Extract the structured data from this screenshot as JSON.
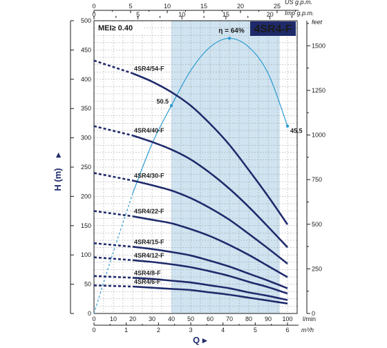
{
  "chart_data": {
    "type": "line",
    "title": "4SR4-F",
    "mei_label": "MEI≥ 0.40",
    "xlabel": "Q",
    "ylabel": "H (m)",
    "xlim": [
      0,
      105
    ],
    "ylim": [
      0,
      500
    ],
    "x_unit": "l/min",
    "x_ticks": [
      0,
      10,
      20,
      30,
      40,
      50,
      60,
      70,
      80,
      90,
      100
    ],
    "y_ticks": [
      0,
      50,
      100,
      150,
      200,
      250,
      300,
      350,
      400,
      450,
      500
    ],
    "grid": true,
    "shaded_range": [
      40,
      96
    ],
    "secondary_axes": {
      "us_gpm": {
        "label": "US g.p.m.",
        "ticks": [
          0,
          5,
          10,
          15,
          20,
          25
        ]
      },
      "imp_gpm": {
        "label": "Imp g.p.m.",
        "ticks": [
          0,
          5,
          10,
          15,
          20
        ]
      },
      "m3h": {
        "label": "m³/h",
        "ticks": [
          0,
          1,
          2,
          3,
          4,
          5,
          6
        ]
      },
      "feet": {
        "label": "feet",
        "ticks": [
          0,
          250,
          500,
          750,
          1000,
          1250,
          1500
        ]
      }
    },
    "series": [
      {
        "name": "4SR4/54-F",
        "x": [
          20,
          30,
          40,
          50,
          60,
          70,
          80,
          90,
          100
        ],
        "y": [
          410,
          396,
          378,
          355,
          324,
          288,
          245,
          200,
          152
        ]
      },
      {
        "name": "4SR4/40-F",
        "x": [
          20,
          30,
          40,
          50,
          60,
          70,
          80,
          90,
          100
        ],
        "y": [
          304,
          293,
          280,
          263,
          240,
          213,
          182,
          148,
          113
        ]
      },
      {
        "name": "4SR4/30-F",
        "x": [
          20,
          30,
          40,
          50,
          60,
          70,
          80,
          90,
          100
        ],
        "y": [
          227,
          219,
          210,
          197,
          180,
          160,
          136,
          111,
          85
        ]
      },
      {
        "name": "4SR4/22-F",
        "x": [
          20,
          30,
          40,
          50,
          60,
          70,
          80,
          90,
          100
        ],
        "y": [
          166,
          160,
          154,
          144,
          132,
          117,
          100,
          81,
          62
        ]
      },
      {
        "name": "4SR4/15-F",
        "x": [
          20,
          30,
          40,
          50,
          60,
          70,
          80,
          90,
          100
        ],
        "y": [
          114,
          110,
          105,
          99,
          90,
          80,
          68,
          56,
          43
        ]
      },
      {
        "name": "4SR4/12-F",
        "x": [
          20,
          30,
          40,
          50,
          60,
          70,
          80,
          90,
          100
        ],
        "y": [
          91,
          88,
          84,
          79,
          72,
          64,
          54,
          45,
          34
        ]
      },
      {
        "name": "4SR4/8-F",
        "x": [
          20,
          30,
          40,
          50,
          60,
          70,
          80,
          90,
          100
        ],
        "y": [
          61,
          59,
          56,
          53,
          48,
          43,
          36,
          30,
          23
        ]
      },
      {
        "name": "4SR4/6-F",
        "x": [
          20,
          30,
          40,
          50,
          60,
          70,
          80,
          90,
          100
        ],
        "y": [
          46,
          44,
          42,
          40,
          36,
          32,
          27,
          22,
          17
        ]
      }
    ],
    "dashed_segments": [
      {
        "name": "4SR4/54-F",
        "y_start": 432
      },
      {
        "name": "4SR4/40-F",
        "y_start": 320
      },
      {
        "name": "4SR4/30-F",
        "y_start": 240
      },
      {
        "name": "4SR4/22-F",
        "y_start": 175
      },
      {
        "name": "4SR4/15-F",
        "y_start": 120
      },
      {
        "name": "4SR4/12-F",
        "y_start": 96
      },
      {
        "name": "4SR4/8-F",
        "y_start": 64
      },
      {
        "name": "4SR4/6-F",
        "y_start": 48
      }
    ],
    "efficiency": {
      "peak_label": "η = 64%",
      "left_label": "50.5",
      "right_label": "45.5",
      "x": [
        0,
        10,
        20,
        30,
        40,
        50,
        60,
        70,
        80,
        90,
        100
      ],
      "y": [
        0,
        105,
        205,
        290,
        355,
        415,
        455,
        470,
        455,
        410,
        320
      ]
    },
    "colors": {
      "curve": "#1f2a6b",
      "efficiency": "#2b9bd1",
      "shade": "#cfe3f0",
      "title_bg": "#1f2a6b",
      "title_text": "#ffffff",
      "grid": "#9a9a9a"
    }
  }
}
